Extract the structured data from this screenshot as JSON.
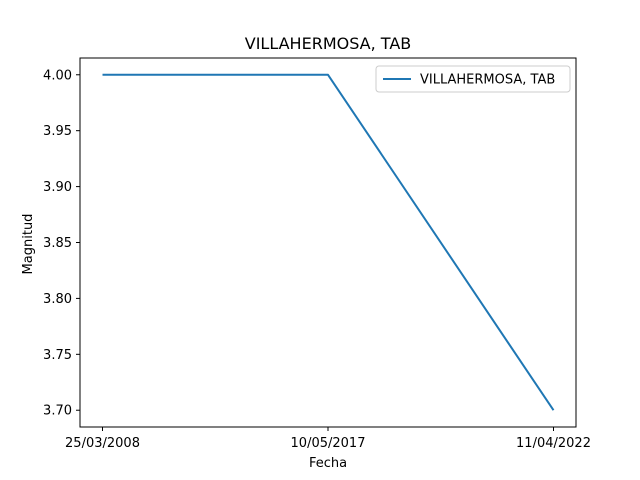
{
  "chart_data": {
    "type": "line",
    "title": "VILLAHERMOSA, TAB",
    "xlabel": "Fecha",
    "ylabel": "Magnitud",
    "x": [
      "25/03/2008",
      "10/05/2017",
      "11/04/2022"
    ],
    "series": [
      {
        "name": "VILLAHERMOSA, TAB",
        "values": [
          4.0,
          4.0,
          3.7
        ],
        "color": "#1f77b4"
      }
    ],
    "ylim": [
      3.685,
      4.015
    ],
    "yticks": [
      "3.70",
      "3.75",
      "3.80",
      "3.85",
      "3.90",
      "3.95",
      "4.00"
    ],
    "legend_position": "top-right",
    "grid": false
  }
}
